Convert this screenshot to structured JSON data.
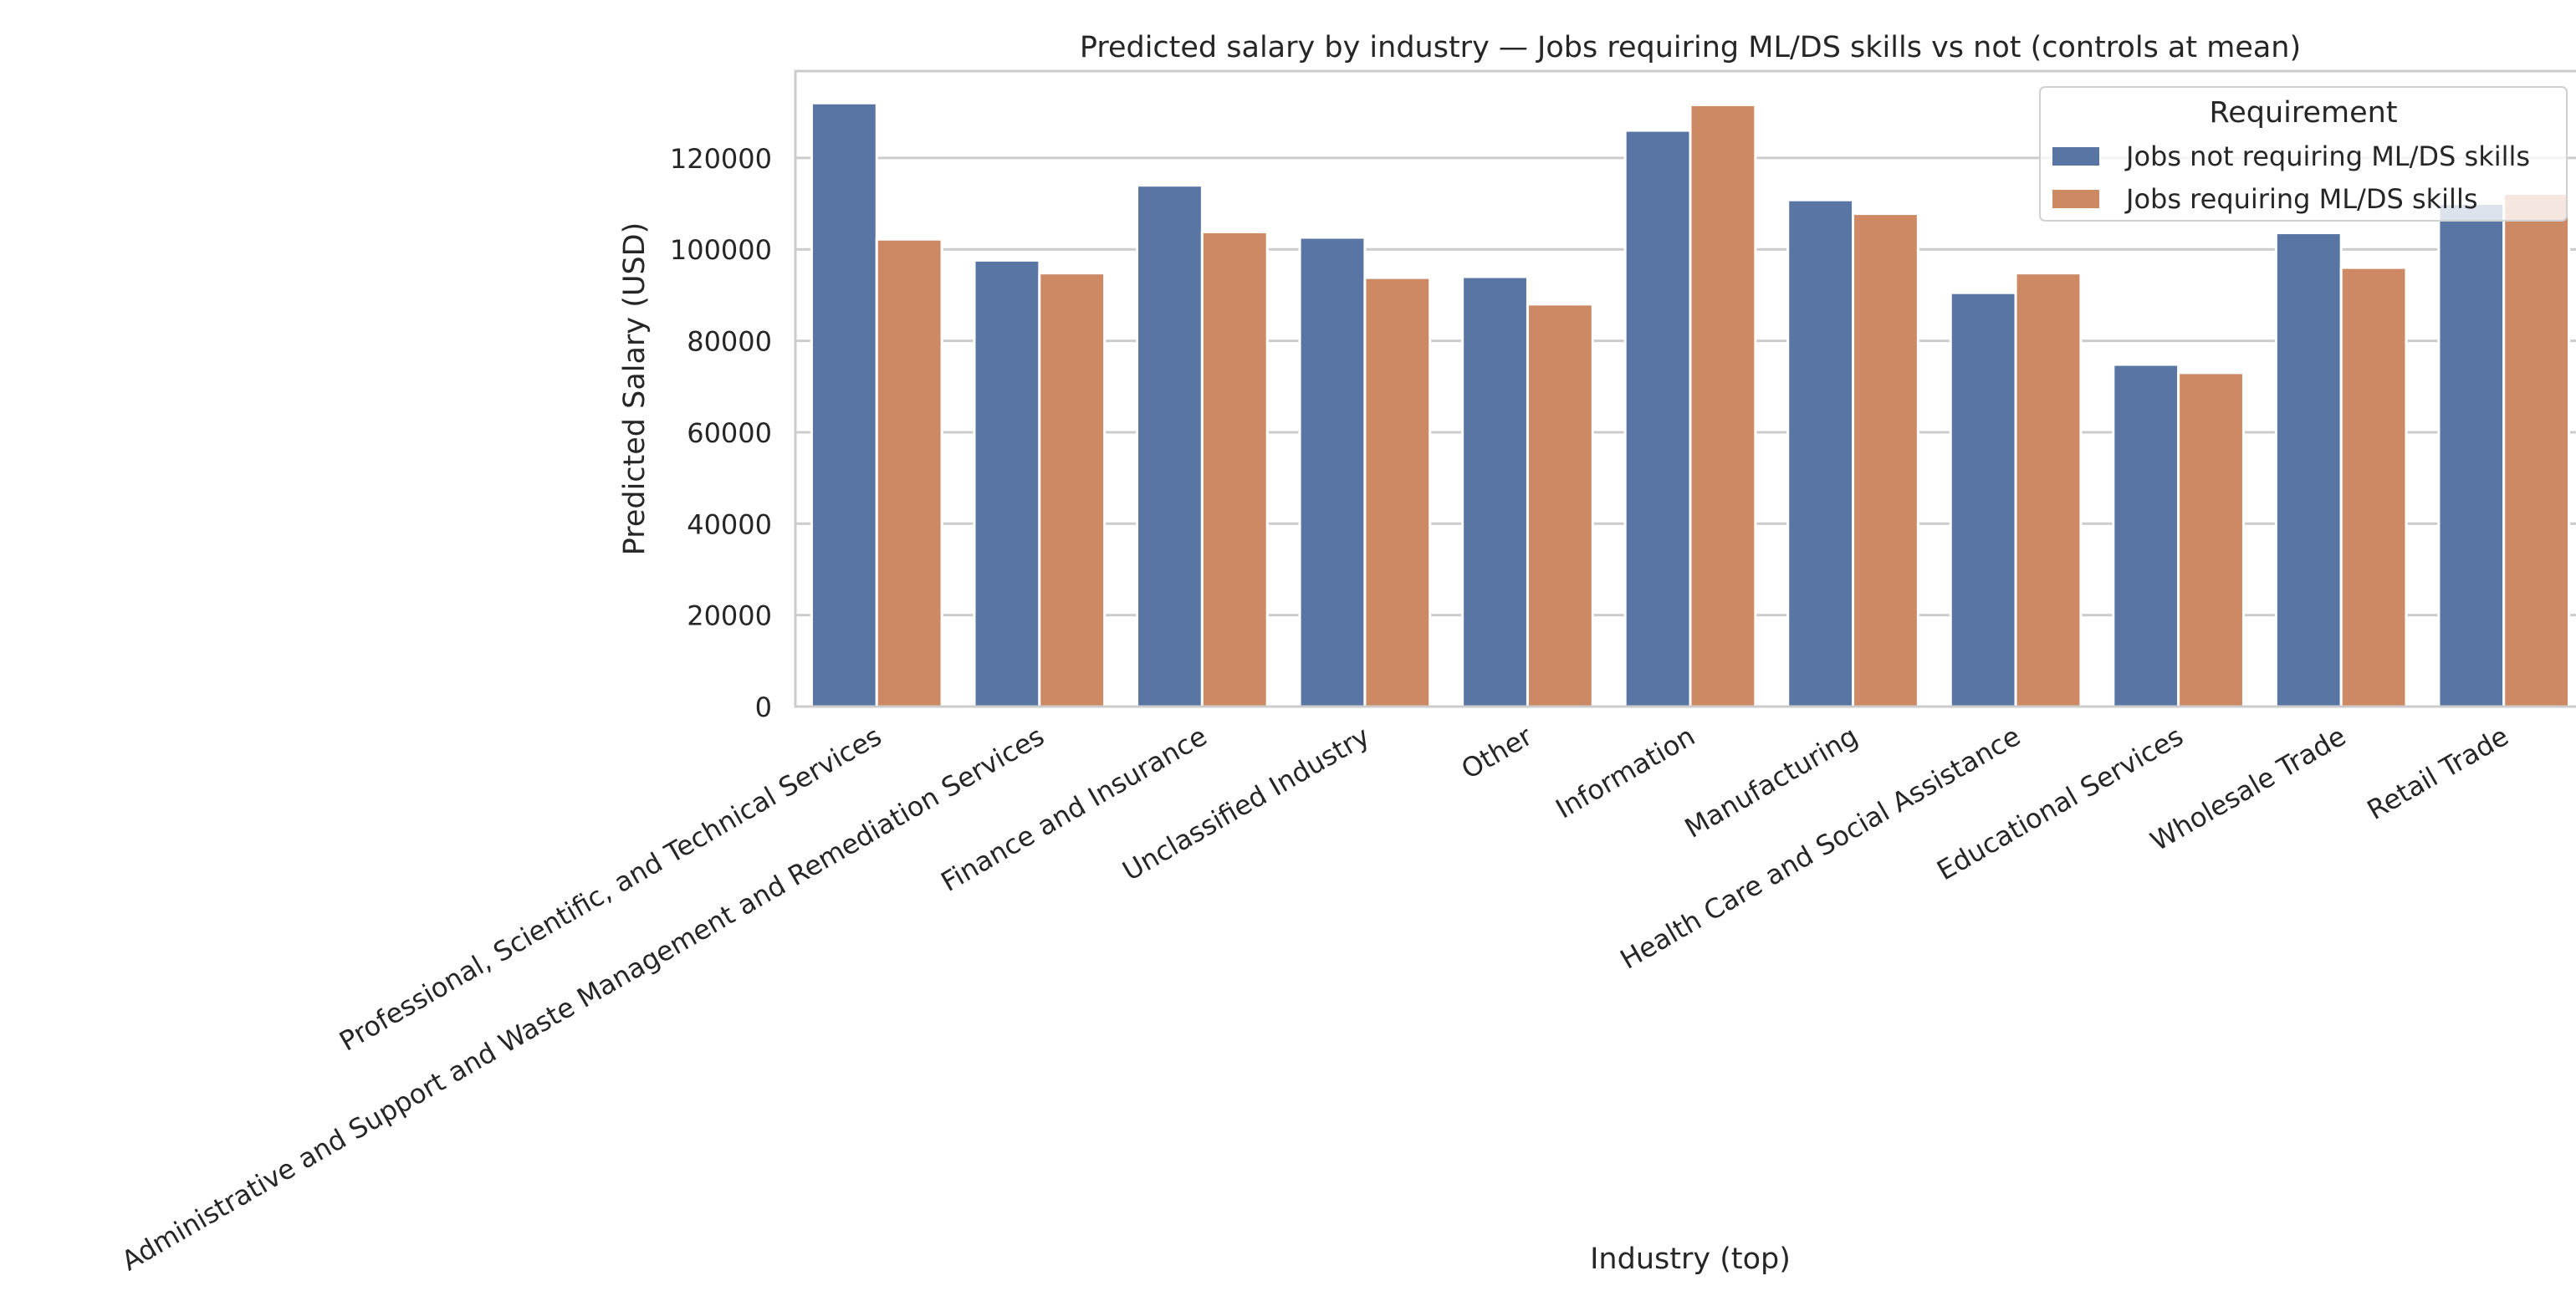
{
  "chart_data": {
    "type": "bar",
    "title": "Predicted salary by industry — Jobs requiring ML/DS skills vs not (controls at mean)",
    "xlabel": "Industry (top)",
    "ylabel": "Predicted Salary (USD)",
    "ylim": [
      0,
      139000
    ],
    "yticks": [
      0,
      20000,
      40000,
      60000,
      80000,
      100000,
      120000
    ],
    "ytick_labels": [
      "0",
      "20000",
      "40000",
      "60000",
      "80000",
      "100000",
      "120000"
    ],
    "grid": "horizontal",
    "categories": [
      "Professional, Scientific, and Technical Services",
      "Administrative and Support and Waste Management and Remediation Services",
      "Finance and Insurance",
      "Unclassified Industry",
      "Other",
      "Information",
      "Manufacturing",
      "Health Care and Social Assistance",
      "Educational Services",
      "Wholesale Trade",
      "Retail Trade"
    ],
    "series": [
      {
        "name": "Jobs not requiring ML/DS skills",
        "color": "#5875a4",
        "values": [
          132000,
          97600,
          114000,
          102600,
          94000,
          126000,
          110800,
          90500,
          74800,
          103600,
          110000
        ]
      },
      {
        "name": "Jobs requiring ML/DS skills",
        "color": "#cc8963",
        "values": [
          102200,
          94800,
          103800,
          93800,
          88000,
          131600,
          107800,
          94800,
          73000,
          96000,
          112200
        ]
      }
    ],
    "legend": {
      "title": "Requirement",
      "placement": "top-right"
    }
  }
}
